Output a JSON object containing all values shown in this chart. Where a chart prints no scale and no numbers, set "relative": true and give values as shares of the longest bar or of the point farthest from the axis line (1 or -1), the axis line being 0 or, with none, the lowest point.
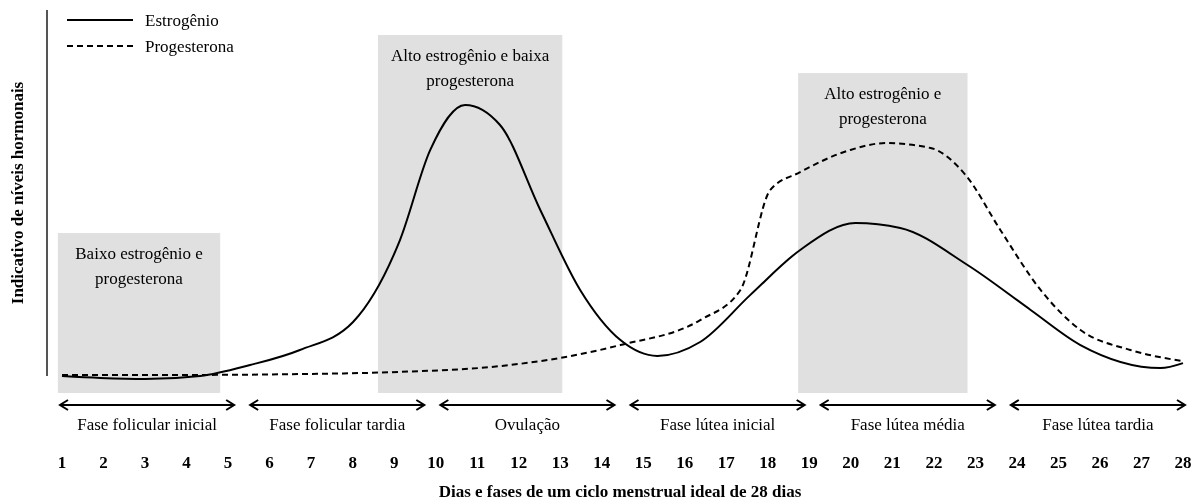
{
  "chart_data": {
    "type": "line",
    "relative": true,
    "xlabel": "Dias e fases de um ciclo menstrual ideal de 28 dias",
    "ylabel": "Indicativo de níveis hormonais",
    "xlim": [
      1,
      28
    ],
    "xticks": [
      1,
      2,
      3,
      4,
      5,
      6,
      7,
      8,
      9,
      10,
      11,
      12,
      13,
      14,
      15,
      16,
      17,
      18,
      19,
      20,
      21,
      22,
      23,
      24,
      25,
      26,
      27,
      28
    ],
    "tick_labels": "x",
    "legend": "top left",
    "series": [
      {
        "name": "Estrogênio",
        "color": "#000000",
        "line_style": "solid",
        "x": [
          1,
          1.92,
          3.0,
          4.33,
          5.53,
          6.73,
          8.01,
          9.14,
          9.87,
          10.71,
          11.55,
          12.52,
          13.48,
          14.45,
          15.34,
          16.37,
          17.58,
          18.78,
          20.11,
          21.19,
          22.81,
          24.33,
          25.53,
          27.46,
          28
        ],
        "values": [
          0.011,
          0.004,
          0,
          0.011,
          0.051,
          0.106,
          0.208,
          0.507,
          0.836,
          1,
          0.927,
          0.617,
          0.325,
          0.142,
          0.084,
          0.135,
          0.307,
          0.471,
          0.569,
          0.551,
          0.416,
          0.252,
          0.124,
          0.04,
          0.058
        ]
      },
      {
        "name": "Progesterona",
        "color": "#000000",
        "line_style": "dashed",
        "x": [
          1,
          4.33,
          6.73,
          9.14,
          11.55,
          13.0,
          14.45,
          16.37,
          17.34,
          18.06,
          18.78,
          19.99,
          20.83,
          21.92,
          22.76,
          23.6,
          24.57,
          25.53,
          26.73,
          28
        ],
        "values": [
          0.015,
          0.015,
          0.018,
          0.026,
          0.047,
          0.077,
          0.124,
          0.215,
          0.325,
          0.69,
          0.755,
          0.836,
          0.861,
          0.843,
          0.745,
          0.544,
          0.325,
          0.179,
          0.106,
          0.065
        ]
      }
    ],
    "bands": [
      {
        "axis": "x",
        "from": 0.9,
        "to": 4.81,
        "label": "Baixo estrogênio e progesterona",
        "color": "#e0e0e0"
      },
      {
        "axis": "x",
        "from": 8.61,
        "to": 13.05,
        "label": "Alto estrogênio e baixa progesterona",
        "color": "#e0e0e0"
      },
      {
        "axis": "x",
        "from": 18.73,
        "to": 22.81,
        "label": "Alto estrogênio e progesterona",
        "color": "#e0e0e0"
      }
    ],
    "annotations": [
      "Fase folicular inicial",
      "Fase folicular tardia",
      "Ovulação",
      "Fase lútea inicial",
      "Fase lútea média",
      "Fase lútea tardia"
    ]
  }
}
